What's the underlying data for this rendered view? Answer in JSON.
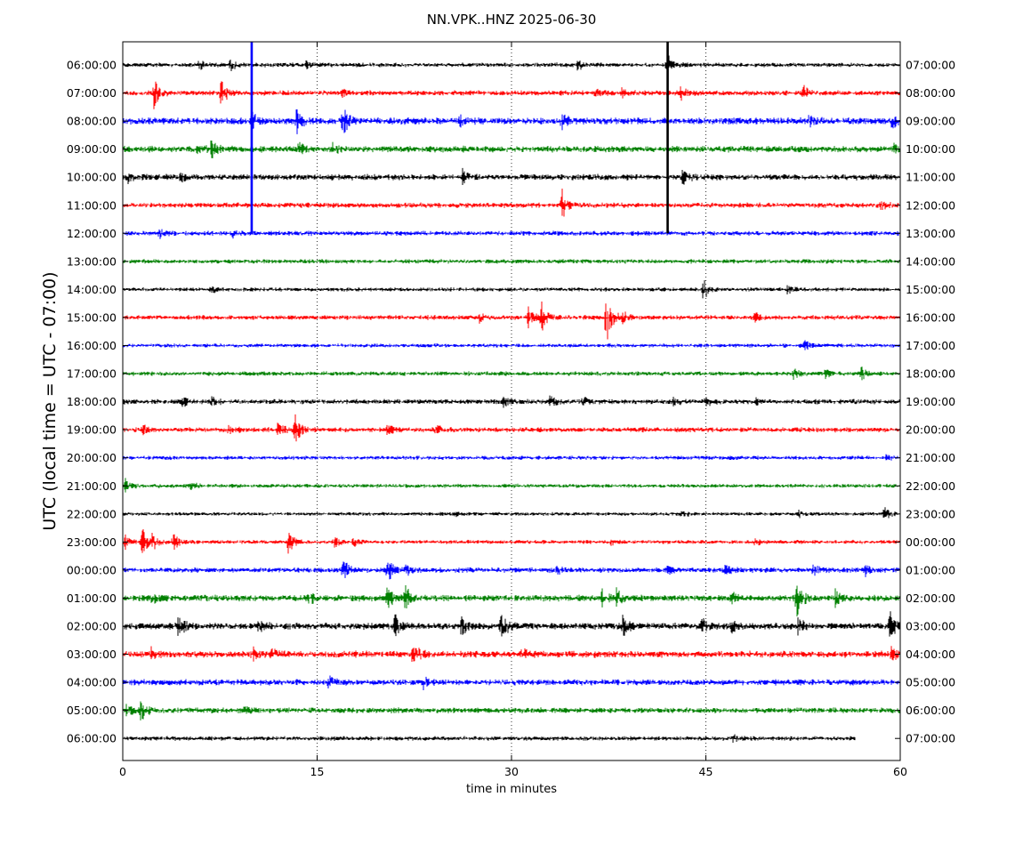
{
  "chart_data": {
    "type": "line",
    "title": "NN.VPK..HNZ 2025-06-30",
    "xlabel": "time in minutes",
    "ylabel": "UTC (local time = UTC - 07:00)",
    "xlim": [
      0,
      60
    ],
    "x_ticks": [
      "0",
      "15",
      "30",
      "45",
      "60"
    ],
    "grid": "vertical dotted at 15, 30, 45",
    "trace_colors": [
      "#000000",
      "#ff0000",
      "#0000ff",
      "#008000"
    ],
    "left_labels": [
      "06:00:00",
      "07:00:00",
      "08:00:00",
      "09:00:00",
      "10:00:00",
      "11:00:00",
      "12:00:00",
      "13:00:00",
      "14:00:00",
      "15:00:00",
      "16:00:00",
      "17:00:00",
      "18:00:00",
      "19:00:00",
      "20:00:00",
      "21:00:00",
      "22:00:00",
      "23:00:00",
      "00:00:00",
      "01:00:00",
      "02:00:00",
      "03:00:00",
      "04:00:00",
      "05:00:00",
      "06:00:00"
    ],
    "right_labels": [
      "07:00:00",
      "08:00:00",
      "09:00:00",
      "10:00:00",
      "11:00:00",
      "12:00:00",
      "13:00:00",
      "14:00:00",
      "15:00:00",
      "16:00:00",
      "17:00:00",
      "18:00:00",
      "19:00:00",
      "20:00:00",
      "21:00:00",
      "22:00:00",
      "23:00:00",
      "00:00:00",
      "01:00:00",
      "02:00:00",
      "03:00:00",
      "04:00:00",
      "05:00:00",
      "06:00:00",
      "07:00:00"
    ],
    "rows": [
      {
        "noise": 2.2,
        "end": 60,
        "events": [
          {
            "t": 5.9,
            "a": 6
          },
          {
            "t": 8.3,
            "a": 6
          },
          {
            "t": 14.2,
            "a": 5
          },
          {
            "t": 35.1,
            "a": 6
          },
          {
            "t": 42.0,
            "a": 14
          }
        ]
      },
      {
        "noise": 2.6,
        "end": 60,
        "events": [
          {
            "t": 2.4,
            "a": 16
          },
          {
            "t": 7.6,
            "a": 16
          },
          {
            "t": 17.0,
            "a": 4
          },
          {
            "t": 36.5,
            "a": 5
          },
          {
            "t": 38.5,
            "a": 6
          },
          {
            "t": 43.0,
            "a": 9
          },
          {
            "t": 52.5,
            "a": 8
          }
        ]
      },
      {
        "noise": 3.5,
        "end": 60,
        "events": [
          {
            "t": 10.0,
            "a": 10
          },
          {
            "t": 13.4,
            "a": 16
          },
          {
            "t": 17.0,
            "a": 18
          },
          {
            "t": 26.0,
            "a": 6
          },
          {
            "t": 33.9,
            "a": 9
          },
          {
            "t": 53.0,
            "a": 6
          },
          {
            "t": 59.3,
            "a": 9
          }
        ]
      },
      {
        "noise": 3.2,
        "end": 60,
        "events": [
          {
            "t": 5.8,
            "a": 8
          },
          {
            "t": 6.8,
            "a": 9
          },
          {
            "t": 13.6,
            "a": 9
          },
          {
            "t": 16.2,
            "a": 6
          },
          {
            "t": 59.5,
            "a": 6
          }
        ]
      },
      {
        "noise": 3.0,
        "end": 60,
        "events": [
          {
            "t": 0.4,
            "a": 6
          },
          {
            "t": 4.5,
            "a": 5
          },
          {
            "t": 26.2,
            "a": 9
          },
          {
            "t": 43.2,
            "a": 9
          }
        ]
      },
      {
        "noise": 2.6,
        "end": 60,
        "events": [
          {
            "t": 33.9,
            "a": 18
          },
          {
            "t": 58.5,
            "a": 5
          }
        ]
      },
      {
        "noise": 2.4,
        "end": 60,
        "events": [
          {
            "t": 2.8,
            "a": 5
          },
          {
            "t": 8.5,
            "a": 4
          }
        ]
      },
      {
        "noise": 2.2,
        "end": 60,
        "events": []
      },
      {
        "noise": 2.0,
        "end": 60,
        "events": [
          {
            "t": 6.8,
            "a": 4
          },
          {
            "t": 44.8,
            "a": 12
          },
          {
            "t": 51.3,
            "a": 5
          }
        ]
      },
      {
        "noise": 2.4,
        "end": 60,
        "events": [
          {
            "t": 27.5,
            "a": 5
          },
          {
            "t": 31.3,
            "a": 14
          },
          {
            "t": 32.3,
            "a": 18
          },
          {
            "t": 37.3,
            "a": 36
          },
          {
            "t": 38.6,
            "a": 9
          },
          {
            "t": 48.8,
            "a": 5
          }
        ]
      },
      {
        "noise": 2.0,
        "end": 60,
        "events": [
          {
            "t": 52.6,
            "a": 7
          }
        ]
      },
      {
        "noise": 2.2,
        "end": 60,
        "events": [
          {
            "t": 51.8,
            "a": 6
          },
          {
            "t": 54.2,
            "a": 5
          },
          {
            "t": 57.0,
            "a": 8
          }
        ]
      },
      {
        "noise": 2.5,
        "end": 60,
        "events": [
          {
            "t": 4.6,
            "a": 6
          },
          {
            "t": 6.9,
            "a": 5
          },
          {
            "t": 29.4,
            "a": 5
          },
          {
            "t": 33.0,
            "a": 6
          },
          {
            "t": 35.5,
            "a": 5
          },
          {
            "t": 42.5,
            "a": 5
          },
          {
            "t": 45.0,
            "a": 6
          },
          {
            "t": 48.8,
            "a": 4
          }
        ]
      },
      {
        "noise": 2.5,
        "end": 60,
        "events": [
          {
            "t": 1.5,
            "a": 6
          },
          {
            "t": 8.2,
            "a": 6
          },
          {
            "t": 12.0,
            "a": 9
          },
          {
            "t": 13.3,
            "a": 16
          },
          {
            "t": 20.4,
            "a": 5
          },
          {
            "t": 24.2,
            "a": 7
          }
        ]
      },
      {
        "noise": 2.0,
        "end": 60,
        "events": [
          {
            "t": 58.8,
            "a": 4
          }
        ]
      },
      {
        "noise": 2.0,
        "end": 60,
        "events": [
          {
            "t": 0.2,
            "a": 8
          },
          {
            "t": 5.3,
            "a": 5
          }
        ]
      },
      {
        "noise": 1.8,
        "end": 60,
        "events": [
          {
            "t": 25.7,
            "a": 3
          },
          {
            "t": 43.1,
            "a": 4
          },
          {
            "t": 52.2,
            "a": 4
          },
          {
            "t": 58.8,
            "a": 10
          }
        ]
      },
      {
        "noise": 2.0,
        "end": 60,
        "events": [
          {
            "t": 0.2,
            "a": 8
          },
          {
            "t": 1.5,
            "a": 16
          },
          {
            "t": 2.3,
            "a": 10
          },
          {
            "t": 3.9,
            "a": 9
          },
          {
            "t": 12.8,
            "a": 14
          },
          {
            "t": 16.3,
            "a": 7
          },
          {
            "t": 17.8,
            "a": 6
          },
          {
            "t": 37.6,
            "a": 4
          },
          {
            "t": 48.8,
            "a": 4
          }
        ]
      },
      {
        "noise": 2.6,
        "end": 60,
        "events": [
          {
            "t": 17.0,
            "a": 12
          },
          {
            "t": 20.4,
            "a": 16
          },
          {
            "t": 21.8,
            "a": 7
          },
          {
            "t": 33.5,
            "a": 5
          },
          {
            "t": 42.0,
            "a": 5
          },
          {
            "t": 46.5,
            "a": 6
          },
          {
            "t": 53.3,
            "a": 9
          },
          {
            "t": 57.3,
            "a": 6
          }
        ]
      },
      {
        "noise": 3.2,
        "end": 60,
        "events": [
          {
            "t": 2.2,
            "a": 6
          },
          {
            "t": 14.4,
            "a": 6
          },
          {
            "t": 20.4,
            "a": 14
          },
          {
            "t": 21.8,
            "a": 14
          },
          {
            "t": 37.0,
            "a": 8
          },
          {
            "t": 38.1,
            "a": 10
          },
          {
            "t": 47.0,
            "a": 6
          },
          {
            "t": 52.0,
            "a": 22
          },
          {
            "t": 55.0,
            "a": 9
          }
        ]
      },
      {
        "noise": 3.4,
        "end": 60,
        "events": [
          {
            "t": 4.3,
            "a": 12
          },
          {
            "t": 10.5,
            "a": 6
          },
          {
            "t": 21.0,
            "a": 12
          },
          {
            "t": 26.1,
            "a": 10
          },
          {
            "t": 29.2,
            "a": 16
          },
          {
            "t": 38.6,
            "a": 12
          },
          {
            "t": 44.7,
            "a": 8
          },
          {
            "t": 47.0,
            "a": 8
          },
          {
            "t": 52.1,
            "a": 8
          },
          {
            "t": 59.2,
            "a": 16
          }
        ]
      },
      {
        "noise": 3.4,
        "end": 60,
        "events": [
          {
            "t": 2.2,
            "a": 7
          },
          {
            "t": 10.0,
            "a": 7
          },
          {
            "t": 11.4,
            "a": 9
          },
          {
            "t": 22.4,
            "a": 16
          },
          {
            "t": 30.8,
            "a": 6
          },
          {
            "t": 59.3,
            "a": 7
          }
        ]
      },
      {
        "noise": 3.0,
        "end": 60,
        "events": [
          {
            "t": 15.9,
            "a": 7
          },
          {
            "t": 23.2,
            "a": 6
          }
        ]
      },
      {
        "noise": 2.8,
        "end": 60,
        "events": [
          {
            "t": 0.3,
            "a": 7
          },
          {
            "t": 1.4,
            "a": 12
          },
          {
            "t": 9.4,
            "a": 4
          }
        ]
      },
      {
        "noise": 2.2,
        "end": 56.5,
        "events": [
          {
            "t": 47.1,
            "a": 4
          }
        ]
      }
    ],
    "spikes": [
      {
        "t": 9.95,
        "from_row": 0,
        "to_row": 6,
        "color": "#0000ff"
      },
      {
        "t": 42.05,
        "from_row": 0,
        "to_row": 6,
        "color": "#000000"
      }
    ]
  }
}
